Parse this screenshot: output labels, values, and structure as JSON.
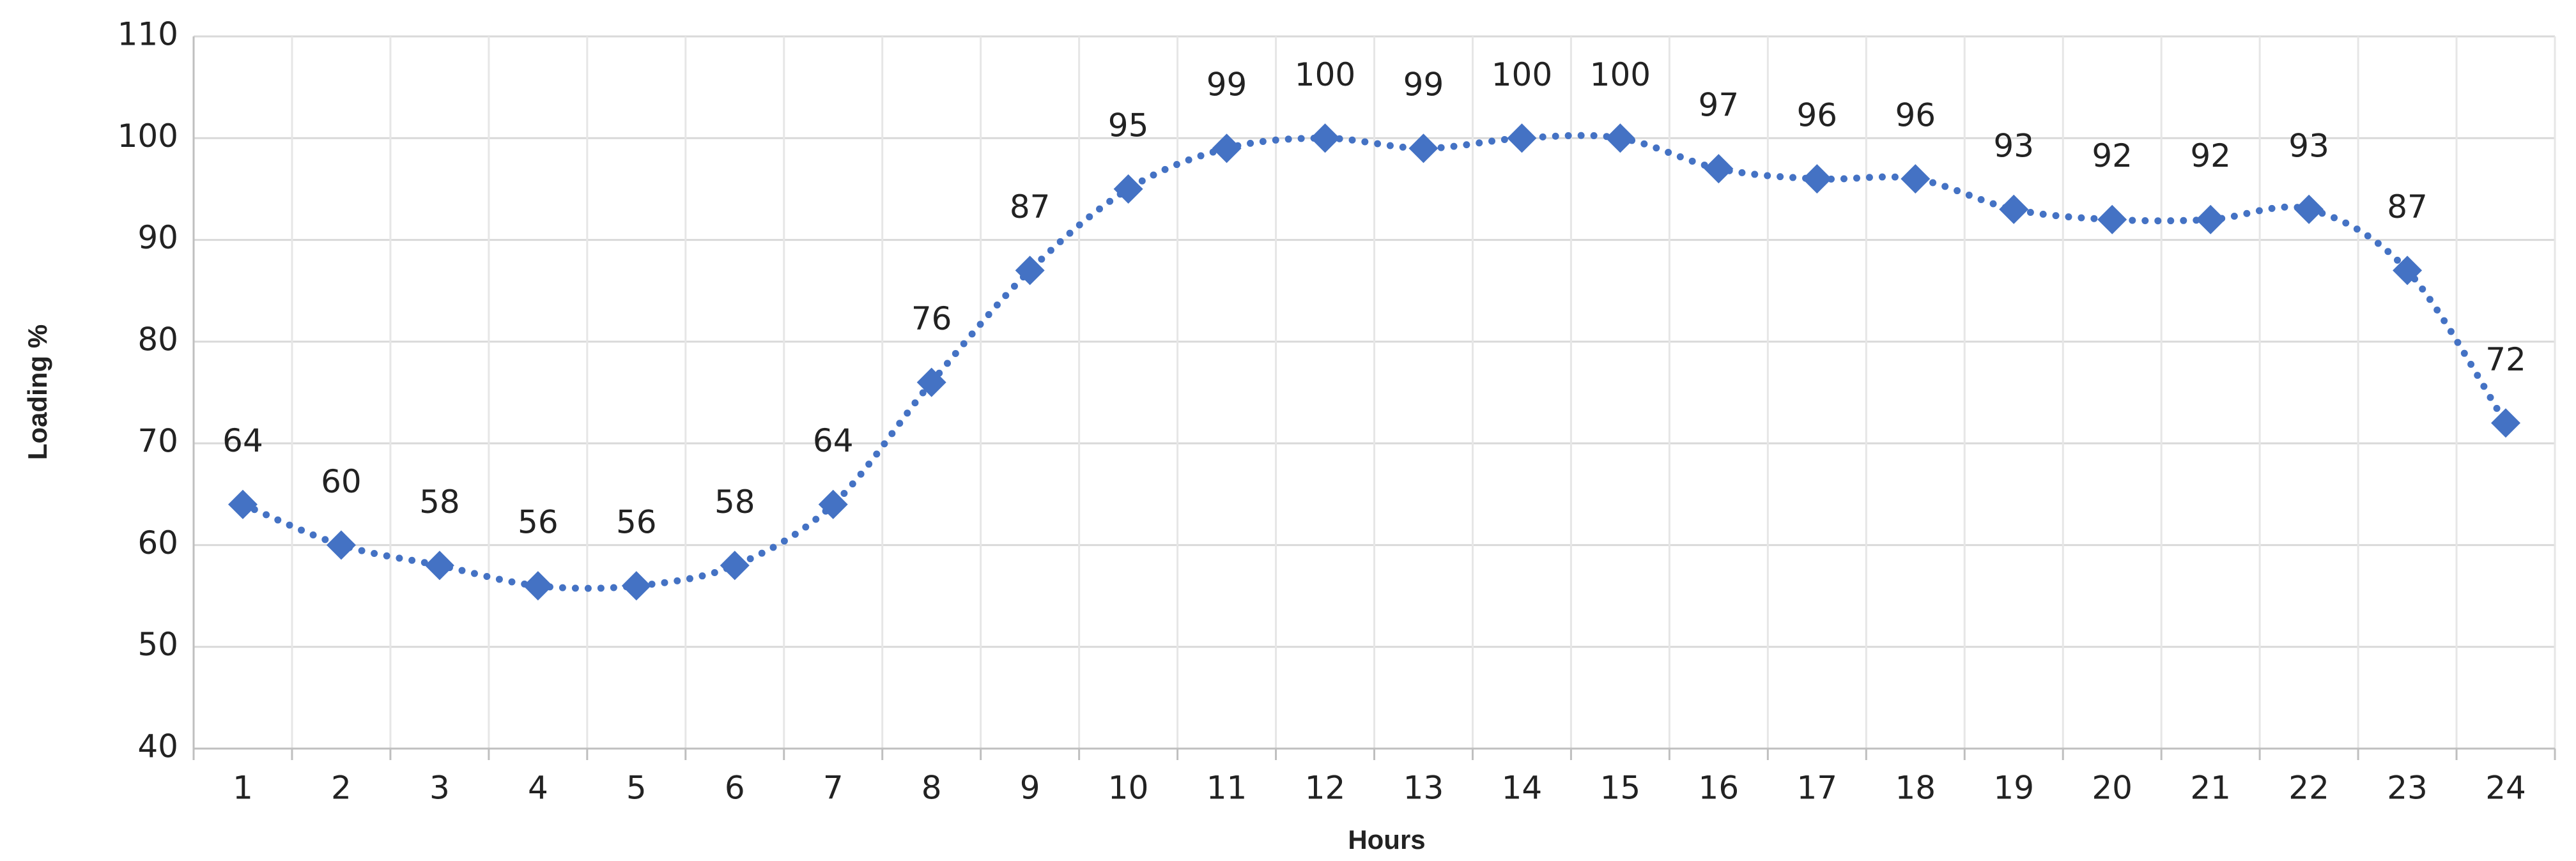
{
  "chart_data": {
    "type": "line",
    "x_label": "Hours",
    "y_label": "Loading %",
    "categories": [
      "1",
      "2",
      "3",
      "4",
      "5",
      "6",
      "7",
      "8",
      "9",
      "10",
      "11",
      "12",
      "13",
      "14",
      "15",
      "16",
      "17",
      "18",
      "19",
      "20",
      "21",
      "22",
      "23",
      "24"
    ],
    "series": [
      {
        "color": "#4472c4",
        "values": [
          64,
          60,
          58,
          56,
          56,
          58,
          64,
          76,
          87,
          95,
          99,
          100,
          99,
          100,
          100,
          97,
          96,
          96,
          93,
          92,
          92,
          93,
          87,
          72
        ]
      }
    ],
    "ylim": [
      40,
      110
    ],
    "yticks": [
      40,
      50,
      60,
      70,
      80,
      90,
      100,
      110
    ],
    "grid": true,
    "data_labels": true,
    "marker": "diamond",
    "line_style": "dotted"
  }
}
